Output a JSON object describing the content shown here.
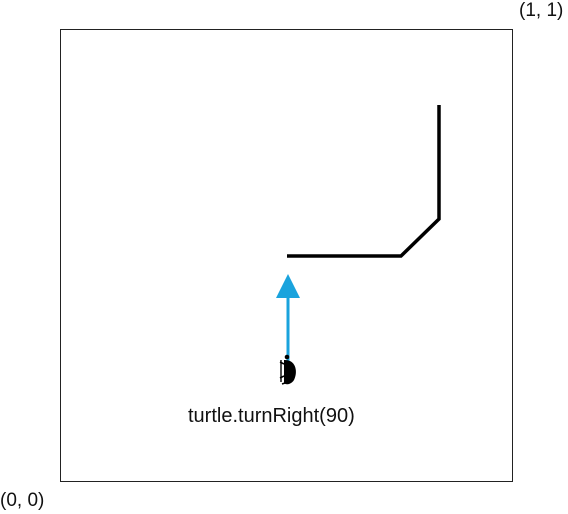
{
  "corner_labels": {
    "top_right": "(1, 1)",
    "bottom_left": "(0, 0)"
  },
  "command": "turtle.turnRight(90)",
  "colors": {
    "path": "#000000",
    "heading_arrow": "#1aa3dd",
    "turtle": "#000000",
    "frame": "#222222"
  },
  "icons": {
    "turtle": "turtle-icon"
  }
}
